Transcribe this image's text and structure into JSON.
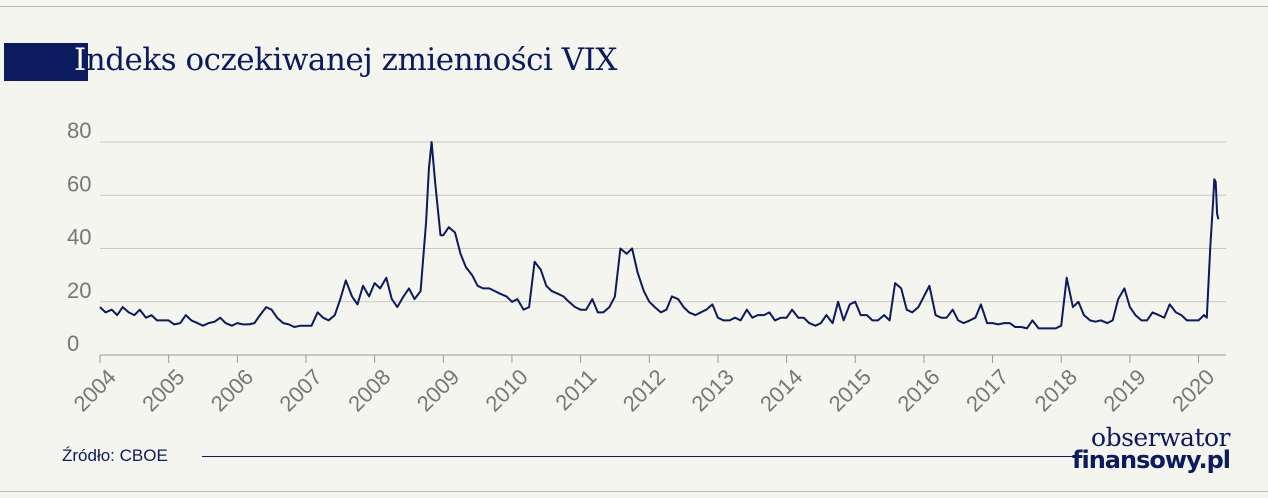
{
  "title_initial": "I",
  "title_rest": "ndeks oczekiwanej zmienności VIX",
  "source": "Źródło: CBOE",
  "logo": {
    "line1": "obserwator",
    "line2": "finansowy.pl"
  },
  "colors": {
    "brand": "#0c1a5e",
    "background": "#f5f5ef",
    "grid": "#c8c8c0",
    "tick_text": "#777777"
  },
  "chart_data": {
    "type": "line",
    "title": "Indeks oczekiwanej zmienności VIX",
    "xlabel": "",
    "ylabel": "",
    "xlim": [
      2004.0,
      2020.4
    ],
    "ylim": [
      0,
      80
    ],
    "yticks": [
      0,
      20,
      40,
      60,
      80
    ],
    "xticks": [
      "2004",
      "2005",
      "2006",
      "2007",
      "2008",
      "2009",
      "2010",
      "2011",
      "2012",
      "2013",
      "2014",
      "2015",
      "2016",
      "2017",
      "2018",
      "2019",
      "2020"
    ],
    "grid": "horizontal",
    "legend": "none",
    "series": [
      {
        "color": "#0c1a5e",
        "points": [
          [
            2004.0,
            18
          ],
          [
            2004.08,
            16
          ],
          [
            2004.17,
            17
          ],
          [
            2004.25,
            15
          ],
          [
            2004.33,
            18
          ],
          [
            2004.42,
            16
          ],
          [
            2004.5,
            15
          ],
          [
            2004.58,
            17
          ],
          [
            2004.67,
            14
          ],
          [
            2004.75,
            15
          ],
          [
            2004.83,
            13
          ],
          [
            2004.92,
            13
          ],
          [
            2005.0,
            13
          ],
          [
            2005.08,
            11.5
          ],
          [
            2005.17,
            12
          ],
          [
            2005.25,
            15
          ],
          [
            2005.33,
            13
          ],
          [
            2005.42,
            12
          ],
          [
            2005.5,
            11
          ],
          [
            2005.58,
            12
          ],
          [
            2005.67,
            12.5
          ],
          [
            2005.75,
            14
          ],
          [
            2005.83,
            12
          ],
          [
            2005.92,
            11
          ],
          [
            2006.0,
            12
          ],
          [
            2006.08,
            11.5
          ],
          [
            2006.17,
            11.5
          ],
          [
            2006.25,
            12
          ],
          [
            2006.33,
            15
          ],
          [
            2006.42,
            18
          ],
          [
            2006.5,
            17
          ],
          [
            2006.58,
            14
          ],
          [
            2006.67,
            12
          ],
          [
            2006.75,
            11.5
          ],
          [
            2006.83,
            10.5
          ],
          [
            2006.92,
            11
          ],
          [
            2007.0,
            11
          ],
          [
            2007.08,
            11
          ],
          [
            2007.17,
            16
          ],
          [
            2007.25,
            14
          ],
          [
            2007.33,
            13
          ],
          [
            2007.42,
            15
          ],
          [
            2007.5,
            21
          ],
          [
            2007.58,
            28
          ],
          [
            2007.67,
            22
          ],
          [
            2007.75,
            19
          ],
          [
            2007.83,
            26
          ],
          [
            2007.92,
            22
          ],
          [
            2008.0,
            27
          ],
          [
            2008.08,
            25
          ],
          [
            2008.17,
            29
          ],
          [
            2008.25,
            21
          ],
          [
            2008.33,
            18
          ],
          [
            2008.42,
            22
          ],
          [
            2008.5,
            25
          ],
          [
            2008.58,
            21
          ],
          [
            2008.67,
            24
          ],
          [
            2008.75,
            50
          ],
          [
            2008.79,
            70
          ],
          [
            2008.83,
            80
          ],
          [
            2008.88,
            65
          ],
          [
            2008.92,
            55
          ],
          [
            2008.96,
            45
          ],
          [
            2009.0,
            45
          ],
          [
            2009.08,
            48
          ],
          [
            2009.17,
            46
          ],
          [
            2009.25,
            38
          ],
          [
            2009.33,
            33
          ],
          [
            2009.42,
            30
          ],
          [
            2009.5,
            26
          ],
          [
            2009.58,
            25
          ],
          [
            2009.67,
            25
          ],
          [
            2009.75,
            24
          ],
          [
            2009.83,
            23
          ],
          [
            2009.92,
            22
          ],
          [
            2010.0,
            20
          ],
          [
            2010.08,
            21
          ],
          [
            2010.17,
            17
          ],
          [
            2010.25,
            18
          ],
          [
            2010.33,
            35
          ],
          [
            2010.42,
            32
          ],
          [
            2010.5,
            26
          ],
          [
            2010.58,
            24
          ],
          [
            2010.67,
            23
          ],
          [
            2010.75,
            22
          ],
          [
            2010.83,
            20
          ],
          [
            2010.92,
            18
          ],
          [
            2011.0,
            17
          ],
          [
            2011.08,
            17
          ],
          [
            2011.17,
            21
          ],
          [
            2011.25,
            16
          ],
          [
            2011.33,
            16
          ],
          [
            2011.42,
            18
          ],
          [
            2011.5,
            22
          ],
          [
            2011.58,
            40
          ],
          [
            2011.67,
            38
          ],
          [
            2011.75,
            40
          ],
          [
            2011.83,
            31
          ],
          [
            2011.92,
            24
          ],
          [
            2012.0,
            20
          ],
          [
            2012.08,
            18
          ],
          [
            2012.17,
            16
          ],
          [
            2012.25,
            17
          ],
          [
            2012.33,
            22
          ],
          [
            2012.42,
            21
          ],
          [
            2012.5,
            18
          ],
          [
            2012.58,
            16
          ],
          [
            2012.67,
            15
          ],
          [
            2012.75,
            16
          ],
          [
            2012.83,
            17
          ],
          [
            2012.92,
            19
          ],
          [
            2013.0,
            14
          ],
          [
            2013.08,
            13
          ],
          [
            2013.17,
            13
          ],
          [
            2013.25,
            14
          ],
          [
            2013.33,
            13
          ],
          [
            2013.42,
            17
          ],
          [
            2013.5,
            14
          ],
          [
            2013.58,
            15
          ],
          [
            2013.67,
            15
          ],
          [
            2013.75,
            16
          ],
          [
            2013.83,
            13
          ],
          [
            2013.92,
            14
          ],
          [
            2014.0,
            14
          ],
          [
            2014.08,
            17
          ],
          [
            2014.17,
            14
          ],
          [
            2014.25,
            14
          ],
          [
            2014.33,
            12
          ],
          [
            2014.42,
            11
          ],
          [
            2014.5,
            12
          ],
          [
            2014.58,
            15
          ],
          [
            2014.67,
            12
          ],
          [
            2014.75,
            20
          ],
          [
            2014.83,
            13
          ],
          [
            2014.92,
            19
          ],
          [
            2015.0,
            20
          ],
          [
            2015.08,
            15
          ],
          [
            2015.17,
            15
          ],
          [
            2015.25,
            13
          ],
          [
            2015.33,
            13
          ],
          [
            2015.42,
            15
          ],
          [
            2015.5,
            13
          ],
          [
            2015.58,
            27
          ],
          [
            2015.67,
            25
          ],
          [
            2015.75,
            17
          ],
          [
            2015.83,
            16
          ],
          [
            2015.92,
            18
          ],
          [
            2016.0,
            22
          ],
          [
            2016.08,
            26
          ],
          [
            2016.17,
            15
          ],
          [
            2016.25,
            14
          ],
          [
            2016.33,
            14
          ],
          [
            2016.42,
            17
          ],
          [
            2016.5,
            13
          ],
          [
            2016.58,
            12
          ],
          [
            2016.67,
            13
          ],
          [
            2016.75,
            14
          ],
          [
            2016.83,
            19
          ],
          [
            2016.92,
            12
          ],
          [
            2017.0,
            12
          ],
          [
            2017.08,
            11.5
          ],
          [
            2017.17,
            12
          ],
          [
            2017.25,
            12
          ],
          [
            2017.33,
            10.5
          ],
          [
            2017.42,
            10.5
          ],
          [
            2017.5,
            10
          ],
          [
            2017.58,
            13
          ],
          [
            2017.67,
            10
          ],
          [
            2017.75,
            10
          ],
          [
            2017.83,
            10
          ],
          [
            2017.92,
            10
          ],
          [
            2018.0,
            11
          ],
          [
            2018.08,
            29
          ],
          [
            2018.17,
            18
          ],
          [
            2018.25,
            20
          ],
          [
            2018.33,
            15
          ],
          [
            2018.42,
            13
          ],
          [
            2018.5,
            12.5
          ],
          [
            2018.58,
            13
          ],
          [
            2018.67,
            12
          ],
          [
            2018.75,
            13
          ],
          [
            2018.83,
            21
          ],
          [
            2018.92,
            25
          ],
          [
            2019.0,
            18
          ],
          [
            2019.08,
            15
          ],
          [
            2019.17,
            13
          ],
          [
            2019.25,
            13
          ],
          [
            2019.33,
            16
          ],
          [
            2019.42,
            15
          ],
          [
            2019.5,
            14
          ],
          [
            2019.58,
            19
          ],
          [
            2019.67,
            16
          ],
          [
            2019.75,
            15
          ],
          [
            2019.83,
            13
          ],
          [
            2019.92,
            13
          ],
          [
            2020.0,
            13
          ],
          [
            2020.08,
            15
          ],
          [
            2020.12,
            14
          ],
          [
            2020.17,
            40
          ],
          [
            2020.21,
            57
          ],
          [
            2020.23,
            66
          ],
          [
            2020.25,
            65
          ],
          [
            2020.27,
            53
          ],
          [
            2020.29,
            51
          ]
        ]
      }
    ]
  }
}
